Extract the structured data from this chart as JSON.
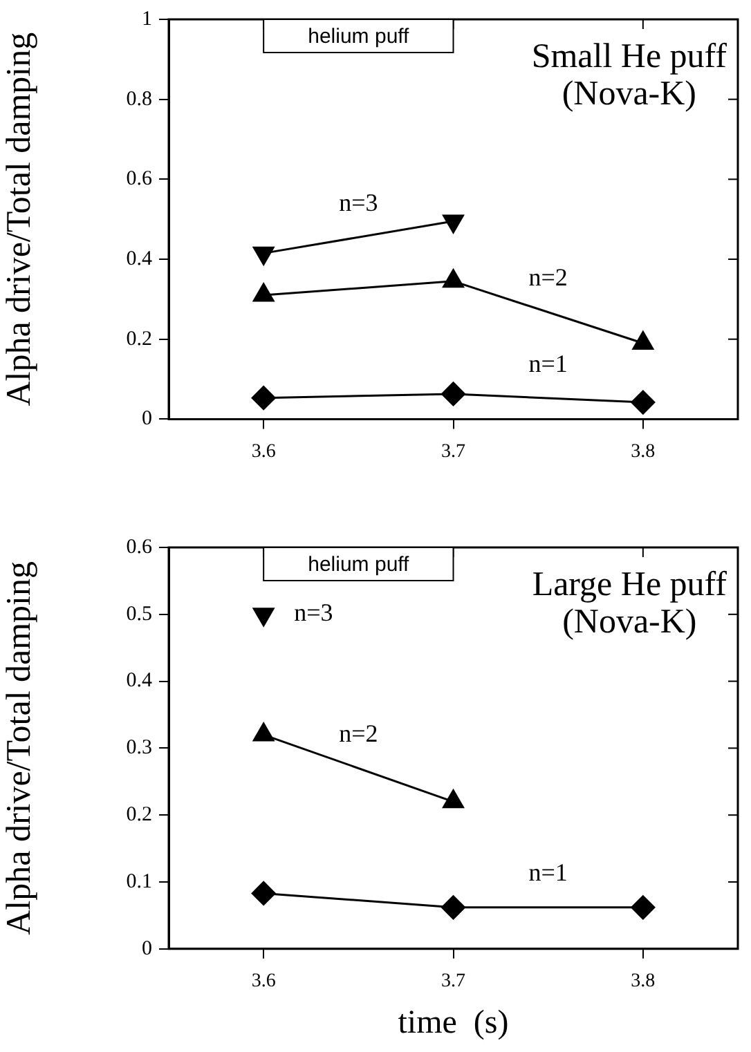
{
  "chart_data": [
    {
      "type": "line",
      "title": "Small He puff (Nova-K)",
      "ylabel": "Alpha drive/Total damping",
      "x": [
        3.6,
        3.7,
        3.8
      ],
      "series": [
        {
          "name": "n=3",
          "color": "#000000",
          "marker": "triangle_down",
          "values": [
            0.415,
            0.495,
            null
          ]
        },
        {
          "name": "n=2",
          "color": "#000000",
          "marker": "triangle",
          "values": [
            0.31,
            0.345,
            0.19
          ]
        },
        {
          "name": "n=1",
          "color": "#000000",
          "marker": "diamond",
          "values": [
            0.053,
            0.063,
            0.042
          ]
        }
      ],
      "xlim": [
        3.55,
        3.85
      ],
      "xticks": [
        3.6,
        3.7,
        3.8
      ],
      "ylim": [
        0,
        1
      ],
      "yticks": [
        0,
        0.2,
        0.4,
        0.6,
        0.8,
        1
      ],
      "bands": [
        {
          "axis": "x",
          "from": 3.6,
          "to": 3.7,
          "label": "helium puff",
          "color": "#ffffff"
        }
      ],
      "grid": false,
      "line_style": "solid"
    },
    {
      "type": "line",
      "title": "Large He puff (Nova-K)",
      "xlabel": "time  (s)",
      "ylabel": "Alpha drive/Total damping",
      "x": [
        3.6,
        3.7,
        3.8
      ],
      "series": [
        {
          "name": "n=3",
          "color": "#000000",
          "marker": "triangle_down",
          "values": [
            0.5,
            null,
            null
          ]
        },
        {
          "name": "n=2",
          "color": "#000000",
          "marker": "triangle",
          "values": [
            0.32,
            0.22,
            null
          ]
        },
        {
          "name": "n=1",
          "color": "#000000",
          "marker": "diamond",
          "values": [
            0.083,
            0.062,
            0.062
          ]
        }
      ],
      "xlim": [
        3.55,
        3.85
      ],
      "xticks": [
        3.6,
        3.7,
        3.8
      ],
      "ylim": [
        0,
        0.6
      ],
      "yticks": [
        0,
        0.1,
        0.2,
        0.3,
        0.4,
        0.5,
        0.6
      ],
      "bands": [
        {
          "axis": "x",
          "from": 3.6,
          "to": 3.7,
          "label": "helium puff",
          "color": "#ffffff"
        }
      ],
      "grid": false,
      "line_style": "solid"
    }
  ]
}
